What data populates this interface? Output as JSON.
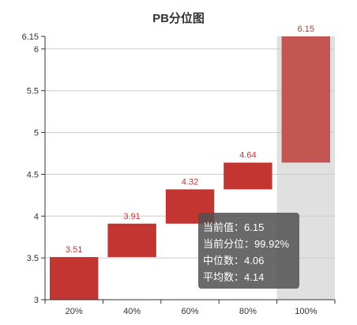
{
  "chart_data": {
    "type": "bar",
    "title": "PB分位图",
    "xlabel": "",
    "ylabel": "",
    "ylim": [
      3,
      6.15
    ],
    "yticks": [
      "3",
      "3.5",
      "4",
      "4.5",
      "5",
      "5.5",
      "6",
      "6.15"
    ],
    "categories": [
      "20%",
      "40%",
      "60%",
      "80%",
      "100%"
    ],
    "bars": [
      {
        "low": 3.0,
        "high": 3.51,
        "label": "3.51"
      },
      {
        "low": 3.51,
        "high": 3.91,
        "label": "3.91"
      },
      {
        "low": 3.91,
        "high": 4.32,
        "label": "4.32"
      },
      {
        "low": 4.32,
        "high": 4.64,
        "label": "4.64"
      },
      {
        "low": 4.64,
        "high": 6.15,
        "label": "6.15"
      }
    ],
    "highlight_index": 4,
    "grid": true,
    "colors": {
      "bar": "#c23531",
      "highlight_bar": "#c35553",
      "highlight_band": "#e0e0e0",
      "grid": "#cccccc",
      "axis": "#333333"
    }
  },
  "tooltip": {
    "rows": [
      "当前值：6.15",
      "当前分位：99.92%",
      "中位数：4.06",
      "平均数：4.14"
    ]
  }
}
